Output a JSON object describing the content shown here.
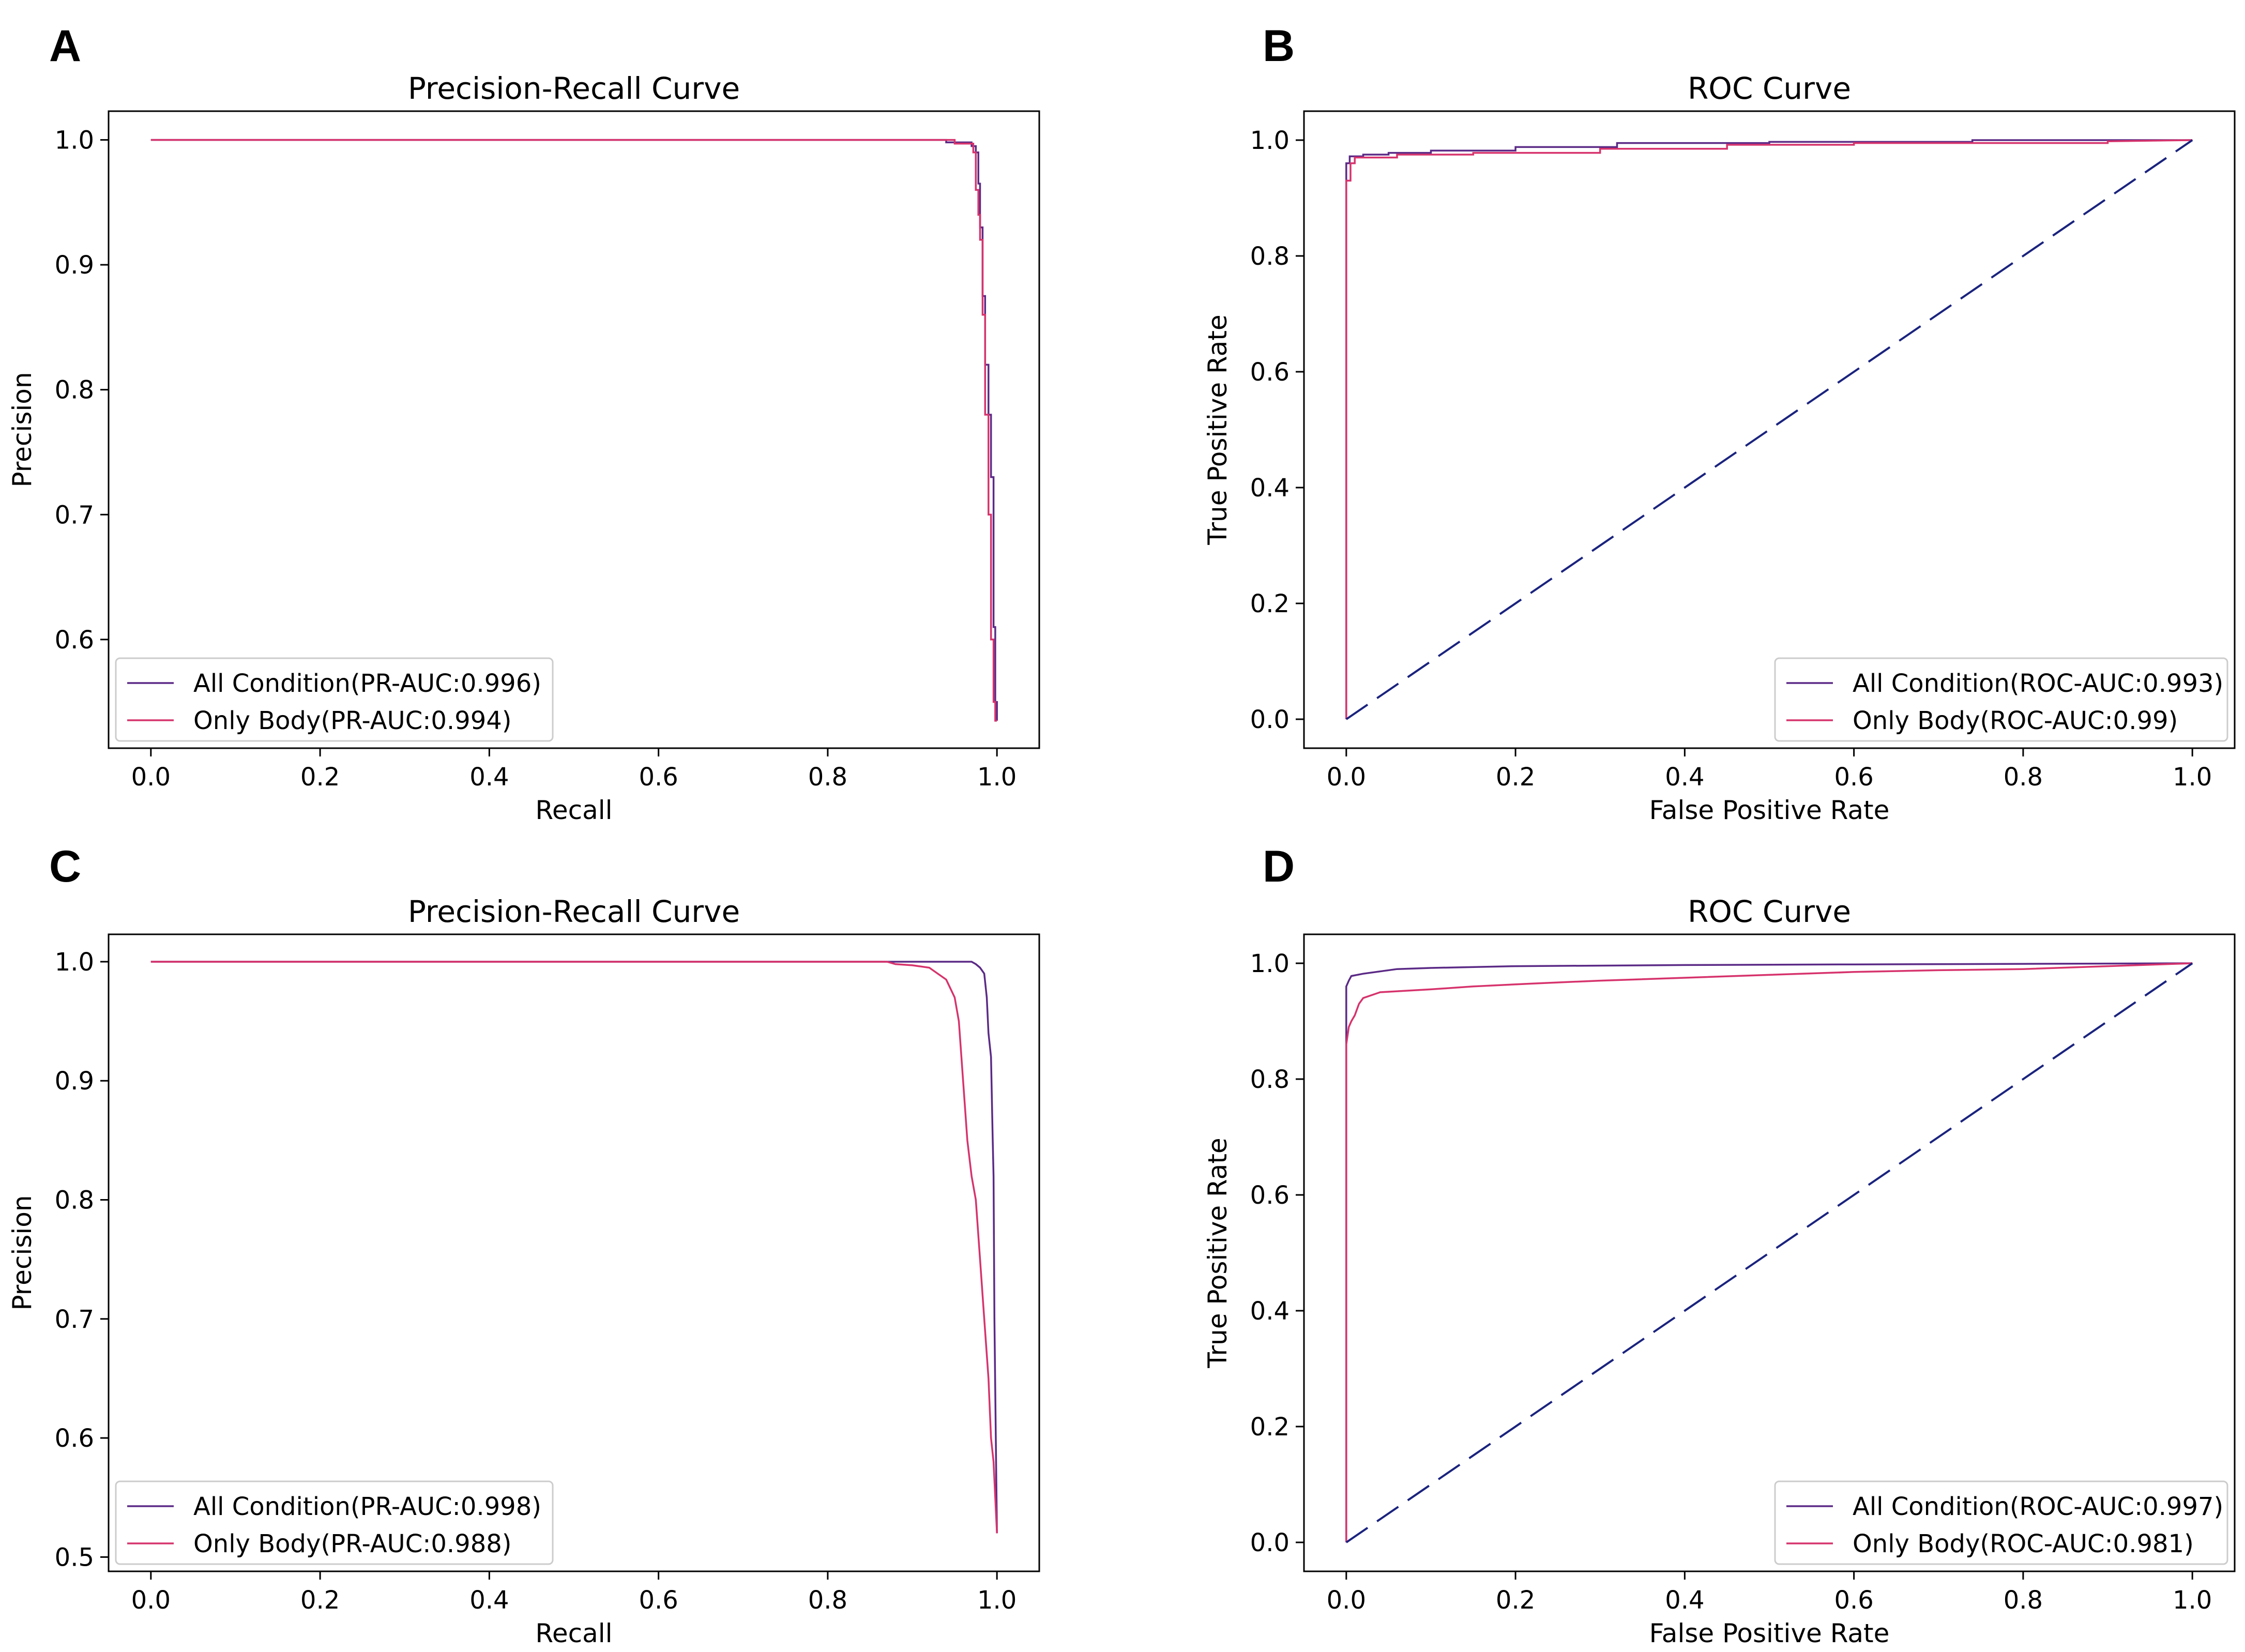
{
  "figure": {
    "panels": [
      "A",
      "B",
      "C",
      "D"
    ]
  },
  "colors": {
    "all_condition": "#5b2a86",
    "only_body": "#d6336c",
    "diagonal": "#1a237e",
    "axes": "#000000"
  },
  "chart_data": [
    {
      "panel": "A",
      "type": "line",
      "title": "Precision-Recall Curve",
      "xlabel": "Recall",
      "ylabel": "Precision",
      "xlim": [
        -0.05,
        1.05
      ],
      "ylim": [
        0.513,
        1.023
      ],
      "xticks": [
        0.0,
        0.2,
        0.4,
        0.6,
        0.8,
        1.0
      ],
      "xtick_labels": [
        "0.0",
        "0.2",
        "0.4",
        "0.6",
        "0.8",
        "1.0"
      ],
      "yticks": [
        0.6,
        0.7,
        0.8,
        0.9,
        1.0
      ],
      "ytick_labels": [
        "0.6",
        "0.7",
        "0.8",
        "0.9",
        "1.0"
      ],
      "legend_position": "lower-left",
      "series": [
        {
          "name": "All Condition(PR-AUC:0.996)",
          "color": "#5b2a86",
          "points": [
            [
              0,
              1.0
            ],
            [
              0.94,
              1.0
            ],
            [
              0.94,
              0.998
            ],
            [
              0.97,
              0.998
            ],
            [
              0.97,
              0.995
            ],
            [
              0.975,
              0.995
            ],
            [
              0.975,
              0.99
            ],
            [
              0.978,
              0.99
            ],
            [
              0.978,
              0.965
            ],
            [
              0.98,
              0.965
            ],
            [
              0.98,
              0.93
            ],
            [
              0.983,
              0.93
            ],
            [
              0.983,
              0.875
            ],
            [
              0.986,
              0.875
            ],
            [
              0.986,
              0.82
            ],
            [
              0.99,
              0.82
            ],
            [
              0.99,
              0.78
            ],
            [
              0.993,
              0.78
            ],
            [
              0.993,
              0.73
            ],
            [
              0.996,
              0.73
            ],
            [
              0.996,
              0.61
            ],
            [
              0.998,
              0.61
            ],
            [
              0.998,
              0.55
            ],
            [
              1.0,
              0.55
            ],
            [
              1.0,
              0.535
            ]
          ]
        },
        {
          "name": "Only Body(PR-AUC:0.994)",
          "color": "#d6336c",
          "points": [
            [
              0,
              1.0
            ],
            [
              0.95,
              1.0
            ],
            [
              0.95,
              0.997
            ],
            [
              0.972,
              0.997
            ],
            [
              0.972,
              0.99
            ],
            [
              0.975,
              0.99
            ],
            [
              0.975,
              0.96
            ],
            [
              0.978,
              0.96
            ],
            [
              0.978,
              0.94
            ],
            [
              0.98,
              0.94
            ],
            [
              0.98,
              0.92
            ],
            [
              0.983,
              0.92
            ],
            [
              0.983,
              0.86
            ],
            [
              0.986,
              0.86
            ],
            [
              0.986,
              0.78
            ],
            [
              0.99,
              0.78
            ],
            [
              0.99,
              0.7
            ],
            [
              0.993,
              0.7
            ],
            [
              0.993,
              0.6
            ],
            [
              0.996,
              0.6
            ],
            [
              0.996,
              0.55
            ],
            [
              0.998,
              0.55
            ],
            [
              0.998,
              0.535
            ],
            [
              1.0,
              0.535
            ]
          ]
        }
      ]
    },
    {
      "panel": "B",
      "type": "line",
      "title": "ROC Curve",
      "xlabel": "False Positive Rate",
      "ylabel": "True Positive Rate",
      "xlim": [
        -0.05,
        1.05
      ],
      "ylim": [
        -0.05,
        1.05
      ],
      "xticks": [
        0.0,
        0.2,
        0.4,
        0.6,
        0.8,
        1.0
      ],
      "xtick_labels": [
        "0.0",
        "0.2",
        "0.4",
        "0.6",
        "0.8",
        "1.0"
      ],
      "yticks": [
        0.0,
        0.2,
        0.4,
        0.6,
        0.8,
        1.0
      ],
      "ytick_labels": [
        "0.0",
        "0.2",
        "0.4",
        "0.6",
        "0.8",
        "1.0"
      ],
      "legend_position": "lower-right",
      "series": [
        {
          "name": "All Condition(ROC-AUC:0.993)",
          "color": "#5b2a86",
          "points": [
            [
              0,
              0
            ],
            [
              0,
              0.96
            ],
            [
              0.004,
              0.96
            ],
            [
              0.004,
              0.972
            ],
            [
              0.02,
              0.972
            ],
            [
              0.02,
              0.975
            ],
            [
              0.05,
              0.975
            ],
            [
              0.05,
              0.978
            ],
            [
              0.1,
              0.978
            ],
            [
              0.1,
              0.982
            ],
            [
              0.2,
              0.982
            ],
            [
              0.2,
              0.988
            ],
            [
              0.32,
              0.988
            ],
            [
              0.32,
              0.995
            ],
            [
              0.5,
              0.995
            ],
            [
              0.5,
              0.997
            ],
            [
              0.74,
              0.997
            ],
            [
              0.74,
              1.0
            ],
            [
              1.0,
              1.0
            ]
          ]
        },
        {
          "name": "Only Body(ROC-AUC:0.99)",
          "color": "#d6336c",
          "points": [
            [
              0,
              0
            ],
            [
              0,
              0.93
            ],
            [
              0.005,
              0.93
            ],
            [
              0.005,
              0.96
            ],
            [
              0.01,
              0.96
            ],
            [
              0.01,
              0.97
            ],
            [
              0.03,
              0.97
            ],
            [
              0.06,
              0.97
            ],
            [
              0.06,
              0.975
            ],
            [
              0.15,
              0.975
            ],
            [
              0.15,
              0.978
            ],
            [
              0.3,
              0.978
            ],
            [
              0.3,
              0.985
            ],
            [
              0.45,
              0.985
            ],
            [
              0.45,
              0.992
            ],
            [
              0.6,
              0.992
            ],
            [
              0.6,
              0.995
            ],
            [
              0.9,
              0.995
            ],
            [
              0.9,
              0.998
            ],
            [
              1.0,
              1.0
            ]
          ]
        },
        {
          "name": "diagonal",
          "color": "#1a237e",
          "dashed": true,
          "points": [
            [
              0,
              0
            ],
            [
              1,
              1
            ]
          ]
        }
      ]
    },
    {
      "panel": "C",
      "type": "line",
      "title": "Precision-Recall Curve",
      "xlabel": "Recall",
      "ylabel": "Precision",
      "xlim": [
        -0.05,
        1.05
      ],
      "ylim": [
        0.488,
        1.023
      ],
      "xticks": [
        0.0,
        0.2,
        0.4,
        0.6,
        0.8,
        1.0
      ],
      "xtick_labels": [
        "0.0",
        "0.2",
        "0.4",
        "0.6",
        "0.8",
        "1.0"
      ],
      "yticks": [
        0.5,
        0.6,
        0.7,
        0.8,
        0.9,
        1.0
      ],
      "ytick_labels": [
        "0.5",
        "0.6",
        "0.7",
        "0.8",
        "0.9",
        "1.0"
      ],
      "legend_position": "lower-left",
      "series": [
        {
          "name": "All Condition(PR-AUC:0.998)",
          "color": "#5b2a86",
          "points": [
            [
              0,
              1.0
            ],
            [
              0.97,
              1.0
            ],
            [
              0.975,
              0.998
            ],
            [
              0.98,
              0.995
            ],
            [
              0.985,
              0.99
            ],
            [
              0.988,
              0.97
            ],
            [
              0.99,
              0.94
            ],
            [
              0.993,
              0.92
            ],
            [
              0.995,
              0.85
            ],
            [
              0.996,
              0.82
            ],
            [
              0.997,
              0.7
            ],
            [
              0.998,
              0.64
            ],
            [
              0.999,
              0.58
            ],
            [
              1.0,
              0.52
            ]
          ]
        },
        {
          "name": "Only Body(PR-AUC:0.988)",
          "color": "#d6336c",
          "points": [
            [
              0,
              1.0
            ],
            [
              0.87,
              1.0
            ],
            [
              0.88,
              0.998
            ],
            [
              0.9,
              0.997
            ],
            [
              0.92,
              0.995
            ],
            [
              0.93,
              0.99
            ],
            [
              0.94,
              0.985
            ],
            [
              0.95,
              0.97
            ],
            [
              0.955,
              0.95
            ],
            [
              0.96,
              0.9
            ],
            [
              0.965,
              0.85
            ],
            [
              0.97,
              0.82
            ],
            [
              0.975,
              0.8
            ],
            [
              0.98,
              0.75
            ],
            [
              0.985,
              0.7
            ],
            [
              0.99,
              0.65
            ],
            [
              0.993,
              0.6
            ],
            [
              0.996,
              0.58
            ],
            [
              0.998,
              0.55
            ],
            [
              1.0,
              0.52
            ]
          ]
        }
      ]
    },
    {
      "panel": "D",
      "type": "line",
      "title": "ROC Curve",
      "xlabel": "False Positive Rate",
      "ylabel": "True Positive Rate",
      "xlim": [
        -0.05,
        1.05
      ],
      "ylim": [
        -0.05,
        1.05
      ],
      "xticks": [
        0.0,
        0.2,
        0.4,
        0.6,
        0.8,
        1.0
      ],
      "xtick_labels": [
        "0.0",
        "0.2",
        "0.4",
        "0.6",
        "0.8",
        "1.0"
      ],
      "yticks": [
        0.0,
        0.2,
        0.4,
        0.6,
        0.8,
        1.0
      ],
      "ytick_labels": [
        "0.0",
        "0.2",
        "0.4",
        "0.6",
        "0.8",
        "1.0"
      ],
      "legend_position": "lower-right",
      "series": [
        {
          "name": "All Condition(ROC-AUC:0.997)",
          "color": "#5b2a86",
          "points": [
            [
              0,
              0
            ],
            [
              0,
              0.96
            ],
            [
              0.003,
              0.97
            ],
            [
              0.006,
              0.978
            ],
            [
              0.02,
              0.982
            ],
            [
              0.04,
              0.986
            ],
            [
              0.06,
              0.99
            ],
            [
              0.1,
              0.992
            ],
            [
              0.2,
              0.995
            ],
            [
              0.4,
              0.997
            ],
            [
              0.6,
              0.998
            ],
            [
              0.8,
              0.999
            ],
            [
              1.0,
              1.0
            ]
          ]
        },
        {
          "name": "Only Body(ROC-AUC:0.981)",
          "color": "#d6336c",
          "points": [
            [
              0,
              0
            ],
            [
              0,
              0.86
            ],
            [
              0.003,
              0.89
            ],
            [
              0.006,
              0.9
            ],
            [
              0.01,
              0.91
            ],
            [
              0.015,
              0.93
            ],
            [
              0.02,
              0.94
            ],
            [
              0.04,
              0.95
            ],
            [
              0.1,
              0.955
            ],
            [
              0.15,
              0.96
            ],
            [
              0.22,
              0.965
            ],
            [
              0.3,
              0.97
            ],
            [
              0.5,
              0.98
            ],
            [
              0.6,
              0.985
            ],
            [
              0.7,
              0.988
            ],
            [
              0.8,
              0.99
            ],
            [
              0.9,
              0.995
            ],
            [
              1.0,
              1.0
            ]
          ]
        },
        {
          "name": "diagonal",
          "color": "#1a237e",
          "dashed": true,
          "points": [
            [
              0,
              0
            ],
            [
              1,
              1
            ]
          ]
        }
      ]
    }
  ]
}
